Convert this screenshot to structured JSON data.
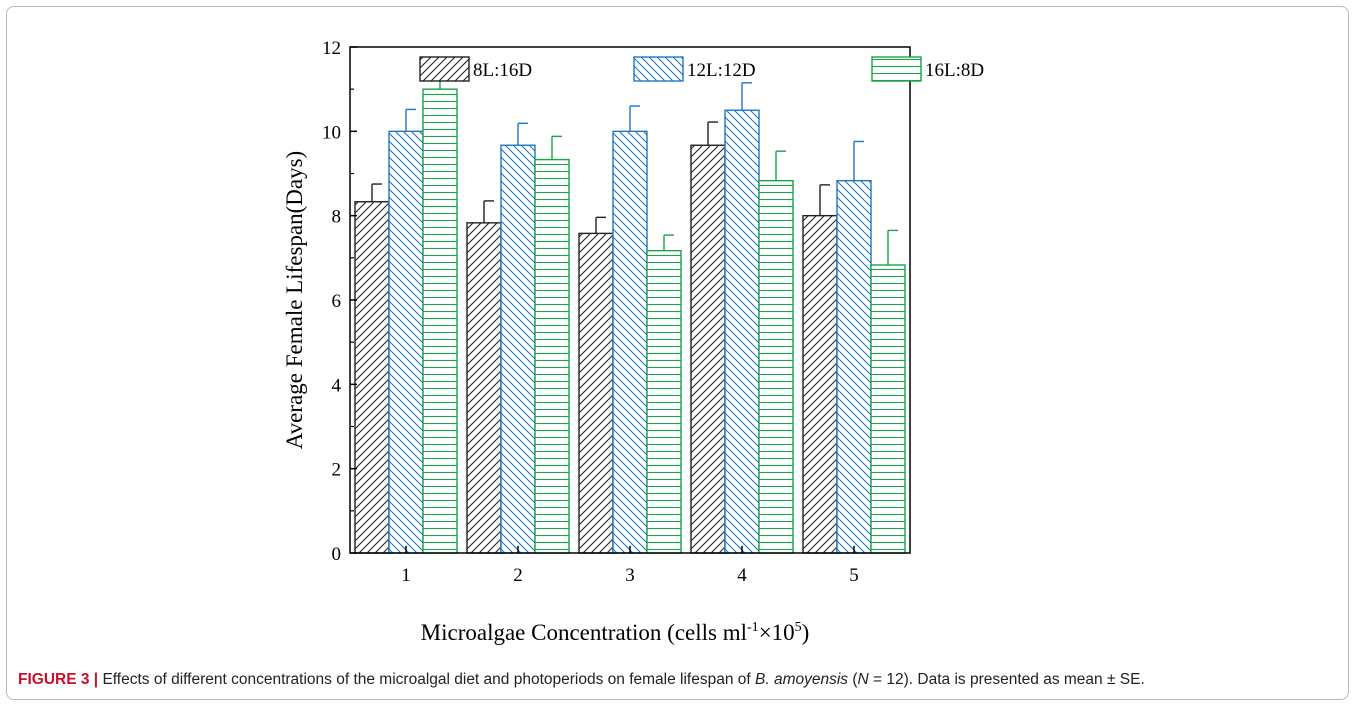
{
  "chart_data": {
    "type": "bar",
    "xlabel_main": "Microalgae Concentration (cells ml",
    "xlabel_sup1": "-1",
    "xlabel_mid": "×10",
    "xlabel_sup2": "5",
    "xlabel_end": ")",
    "ylabel": "Average Female Lifespan(Days)",
    "ylim": [
      0,
      12
    ],
    "yticks": [
      "0",
      "2",
      "4",
      "6",
      "8",
      "10",
      "12"
    ],
    "categories": [
      "1",
      "2",
      "3",
      "4",
      "5"
    ],
    "legend_position": "top",
    "grid": false,
    "series": [
      {
        "name": "8L:16D",
        "color": "#222222",
        "pattern": "diagonal-up",
        "values": [
          8.33,
          7.83,
          7.58,
          9.67,
          8.0
        ],
        "errors": [
          0.42,
          0.52,
          0.38,
          0.55,
          0.73
        ]
      },
      {
        "name": "12L:12D",
        "color": "#1f77c4",
        "pattern": "diagonal-down",
        "values": [
          10.0,
          9.67,
          10.0,
          10.5,
          8.83
        ],
        "errors": [
          0.52,
          0.52,
          0.6,
          0.65,
          0.93
        ]
      },
      {
        "name": "16L:8D",
        "color": "#1aa34a",
        "pattern": "horizontal",
        "values": [
          11.0,
          9.33,
          7.17,
          8.83,
          6.83
        ],
        "errors": [
          0.24,
          0.55,
          0.37,
          0.7,
          0.82
        ]
      }
    ]
  },
  "caption": {
    "label": "FIGURE 3",
    "separator": " | ",
    "text_a": "Effects of different concentrations of the microalgal diet and photoperiods on female lifespan of ",
    "species": "B. amoyensis",
    "text_b": " (",
    "n_symbol": "N",
    "text_c": " = 12). Data is presented as mean ± SE."
  }
}
